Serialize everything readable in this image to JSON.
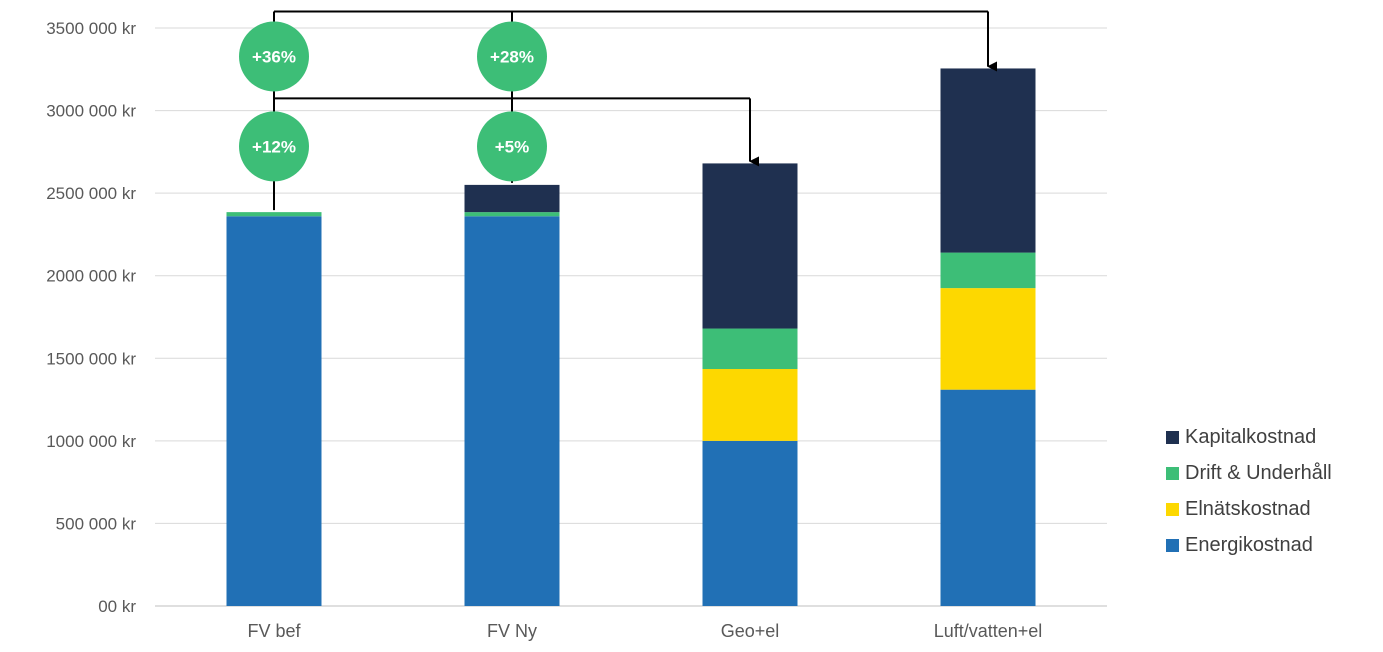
{
  "chart_data": {
    "type": "bar",
    "stacked": true,
    "categories": [
      "FV bef",
      "FV Ny",
      "Geo+el",
      "Luft/vatten+el"
    ],
    "series": [
      {
        "name": "Energikostnad",
        "color": "#2170b5",
        "values": [
          2360000,
          2360000,
          1000000,
          1310000
        ]
      },
      {
        "name": "Elnätskostnad",
        "color": "#fdd800",
        "values": [
          0,
          0,
          435000,
          615000
        ]
      },
      {
        "name": "Drift & Underhåll",
        "color": "#3dbe77",
        "values": [
          25000,
          25000,
          245000,
          215000
        ]
      },
      {
        "name": "Kapitalkostnad",
        "color": "#1f3050",
        "values": [
          0,
          165000,
          1000000,
          1115000
        ]
      }
    ],
    "ylim": [
      0,
      3500000
    ],
    "yticks": [
      0,
      500000,
      1000000,
      1500000,
      2000000,
      2500000,
      3000000,
      3500000
    ],
    "ytick_labels": [
      "00 kr",
      "500 000 kr",
      "1000 000 kr",
      "1500 000 kr",
      "2000 000 kr",
      "2500 000 kr",
      "3000 000 kr",
      "3500 000 kr"
    ],
    "grid": true,
    "legend_position": "right",
    "annotations": [
      {
        "label": "+12%",
        "from": "FV bef",
        "to": "Geo+el"
      },
      {
        "label": "+5%",
        "from": "FV Ny",
        "to": "Geo+el"
      },
      {
        "label": "+36%",
        "from": "FV bef",
        "to": "Luft/vatten+el"
      },
      {
        "label": "+28%",
        "from": "FV Ny",
        "to": "Luft/vatten+el"
      }
    ],
    "annotation_color": "#3dbe77"
  }
}
